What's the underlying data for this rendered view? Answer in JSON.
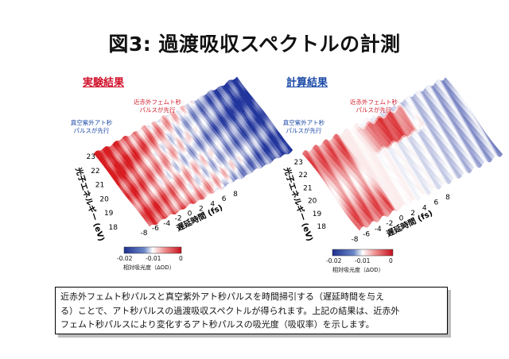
{
  "title": "図3: 過渡吸収スペクトルの計測",
  "panels": {
    "experiment": {
      "title": "実験結果",
      "note_near": "近赤外フェムト秒\nパルスが先行",
      "note_far": "真空紫外アト秒\nパルスが先行",
      "y_label": "光子エネルギー (eV)",
      "x_label": "遅延時間 (fs)",
      "y_ticks": [
        "18",
        "19",
        "20",
        "21",
        "22",
        "23"
      ],
      "x_ticks": [
        "-8",
        "-6",
        "-4",
        "-2",
        "0",
        "2",
        "4",
        "6",
        "8"
      ],
      "colorbar": {
        "ticks": [
          "-0.02",
          "-0.01",
          "0"
        ],
        "label": "相対吸光度（ΔOD）"
      }
    },
    "calculation": {
      "title": "計算結果",
      "note_near": "近赤外フェムト秒\nパルスが先行",
      "note_far": "真空紫外アト秒\nパルスが先行",
      "y_label": "光子エネルギー (eV)",
      "x_label": "遅延時間 (fs)",
      "y_ticks": [
        "18",
        "19",
        "20",
        "21",
        "22",
        "23"
      ],
      "x_ticks": [
        "-8",
        "-6",
        "-4",
        "-2",
        "0",
        "2",
        "4",
        "6",
        "8"
      ],
      "colorbar": {
        "ticks": [
          "-0.02",
          "-0.01",
          "0"
        ],
        "label": "相対吸光度（ΔOD）"
      }
    }
  },
  "colors": {
    "note": "#d01e2e",
    "note_blue": "#1c4aa8",
    "red": "#d9232e",
    "blue": "#1f3a9e"
  },
  "caption": [
    "近赤外フェムト秒パルスと真空紫外アト秒パルスを時間掃引する（遅延時間を与え",
    "る）ことで、アト秒パルスの過渡吸収スペクトルが得られます。上記の結果は、近赤外",
    "フェムト秒パルスにより変化するアト秒パルスの吸光度（吸収率）を示します。"
  ]
}
